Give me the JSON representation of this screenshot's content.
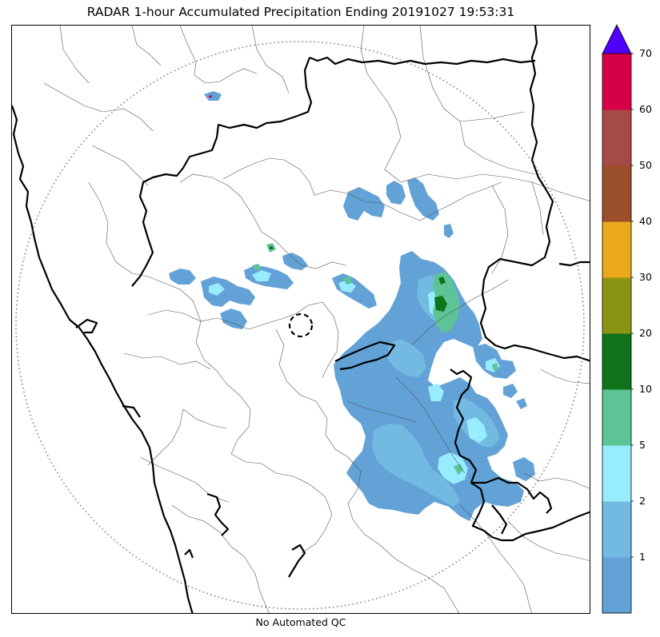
{
  "title": "RADAR 1-hour Accumulated Precipitation Ending 20191027 19:53:31",
  "footer_note": "No Automated QC",
  "colorbar": {
    "levels": [
      {
        "label": "",
        "color": "#62a2d6"
      },
      {
        "label": "1",
        "color": "#73bae3"
      },
      {
        "label": "2",
        "color": "#97ecff"
      },
      {
        "label": "5",
        "color": "#5dc498"
      },
      {
        "label": "10",
        "color": "#0f7319"
      },
      {
        "label": "20",
        "color": "#8c9413"
      },
      {
        "label": "30",
        "color": "#e9a91a"
      },
      {
        "label": "40",
        "color": "#9a4e2a"
      },
      {
        "label": "50",
        "color": "#a64a46"
      },
      {
        "label": "60",
        "color": "#d6004a"
      }
    ],
    "max_label": "70",
    "extend_color": "#5000ff"
  },
  "map": {
    "radar_range_ring": true,
    "radar_site_marker": "dashed-circle",
    "coastline_color": "#000000",
    "state_border_color": "#000000",
    "district_border_color": "#555555"
  }
}
